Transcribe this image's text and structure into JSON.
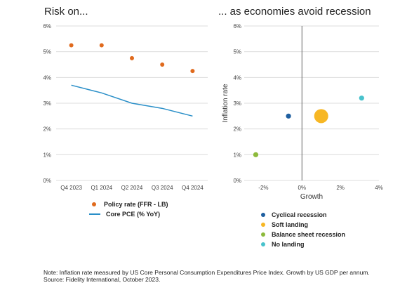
{
  "titles": {
    "left": "Risk on...",
    "right": "... as economies avoid recession"
  },
  "colors": {
    "policy": "#e06a1d",
    "pce": "#2a8fc8",
    "cyclical": "#1f5fa0",
    "soft": "#f7b724",
    "balance": "#8dba3c",
    "nolanding": "#48c2cc"
  },
  "chart_data": [
    {
      "type": "line",
      "categories": [
        "Q4 2023",
        "Q1 2024",
        "Q2 2024",
        "Q3 2024",
        "Q4 2024"
      ],
      "series": [
        {
          "name": "Policy rate (FFR - LB)",
          "style": "scatter",
          "values": [
            5.25,
            5.25,
            4.75,
            4.5,
            4.25
          ]
        },
        {
          "name": "Core PCE (% YoY)",
          "style": "line",
          "values": [
            3.7,
            3.4,
            3.0,
            2.8,
            2.5
          ]
        }
      ],
      "yticks": [
        "0%",
        "1%",
        "2%",
        "3%",
        "4%",
        "5%",
        "6%"
      ],
      "ylim": [
        0,
        6
      ],
      "legend": "bottom"
    },
    {
      "type": "scatter",
      "title": "... as economies avoid recession",
      "xlabel": "Growth",
      "ylabel": "Inflation rate",
      "xlim": [
        -3,
        4
      ],
      "ylim": [
        0,
        6
      ],
      "xticks": [
        "0%",
        "2%",
        "4%"
      ],
      "yticks": [
        "0%",
        "1%",
        "2%",
        "3%",
        "4%",
        "5%",
        "6%"
      ],
      "points": [
        {
          "name": "Cyclical recession",
          "x": -0.7,
          "y": 2.5,
          "size": "small"
        },
        {
          "name": "Soft landing",
          "x": 1.0,
          "y": 2.5,
          "size": "large"
        },
        {
          "name": "Balance sheet recession",
          "x": -2.4,
          "y": 1.0,
          "size": "small"
        },
        {
          "name": "No landing",
          "x": 3.1,
          "y": 3.2,
          "size": "small"
        }
      ],
      "legend": "bottom"
    }
  ],
  "footnote": {
    "line1": "Note: Inflation rate measured by US Core Personal Consumption Expenditures Price Index. Growth by US GDP per annum.",
    "line2": "Source: Fidelity International, October 2023."
  }
}
